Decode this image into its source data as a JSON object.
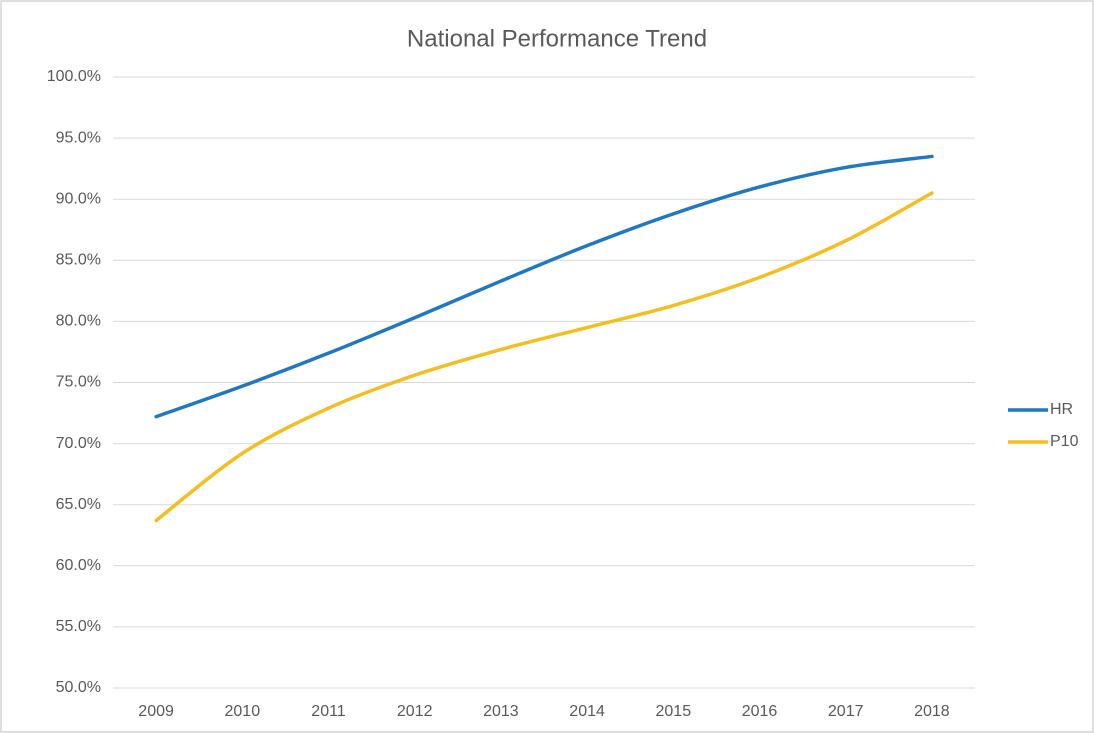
{
  "chart_data": {
    "type": "line",
    "title": "National Performance Trend",
    "categories": [
      "2009",
      "2010",
      "2011",
      "2012",
      "2013",
      "2014",
      "2015",
      "2016",
      "2017",
      "2018"
    ],
    "series": [
      {
        "name": "HR",
        "color": "#1f78c1",
        "values": [
          72.2,
          74.7,
          77.4,
          80.3,
          83.3,
          86.2,
          88.8,
          91.0,
          92.6,
          93.5
        ]
      },
      {
        "name": "P10",
        "color": "#f5bd1f",
        "values": [
          63.7,
          69.2,
          72.9,
          75.6,
          77.7,
          79.5,
          81.3,
          83.6,
          86.6,
          90.5
        ]
      }
    ],
    "ylim": [
      50,
      100
    ],
    "yticks": [
      {
        "value": 50,
        "label": "50.0%"
      },
      {
        "value": 55,
        "label": "55.0%"
      },
      {
        "value": 60,
        "label": "60.0%"
      },
      {
        "value": 65,
        "label": "65.0%"
      },
      {
        "value": 70,
        "label": "70.0%"
      },
      {
        "value": 75,
        "label": "75.0%"
      },
      {
        "value": 80,
        "label": "80.0%"
      },
      {
        "value": 85,
        "label": "85.0%"
      },
      {
        "value": 90,
        "label": "90.0%"
      },
      {
        "value": 95,
        "label": "95.0%"
      },
      {
        "value": 100,
        "label": "100.0%"
      }
    ],
    "grid": true,
    "smooth": true,
    "legend": "right"
  }
}
